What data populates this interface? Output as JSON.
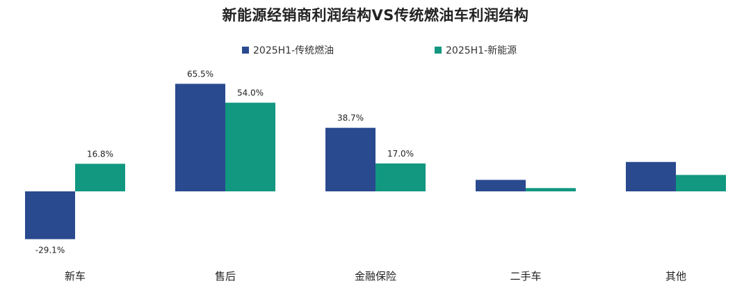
{
  "chart_data": {
    "type": "bar",
    "title": "新能源经销商利润结构VS传统燃油车利润结构",
    "categories": [
      "新车",
      "售后",
      "金融保险",
      "二手车",
      "其他"
    ],
    "series": [
      {
        "name": "2025H1-传统燃油",
        "color": "#2a4a8f",
        "values": [
          -29.1,
          65.5,
          38.7,
          7.0,
          17.9
        ],
        "labels": [
          "-29.1%",
          "65.5%",
          "38.7%",
          "",
          ""
        ]
      },
      {
        "name": "2025H1-新能源",
        "color": "#129780",
        "values": [
          16.8,
          54.0,
          17.0,
          2.0,
          10.0
        ],
        "labels": [
          "16.8%",
          "54.0%",
          "17.0%",
          "",
          ""
        ]
      }
    ],
    "unit": "%",
    "legend_position": "top",
    "grid": false
  }
}
